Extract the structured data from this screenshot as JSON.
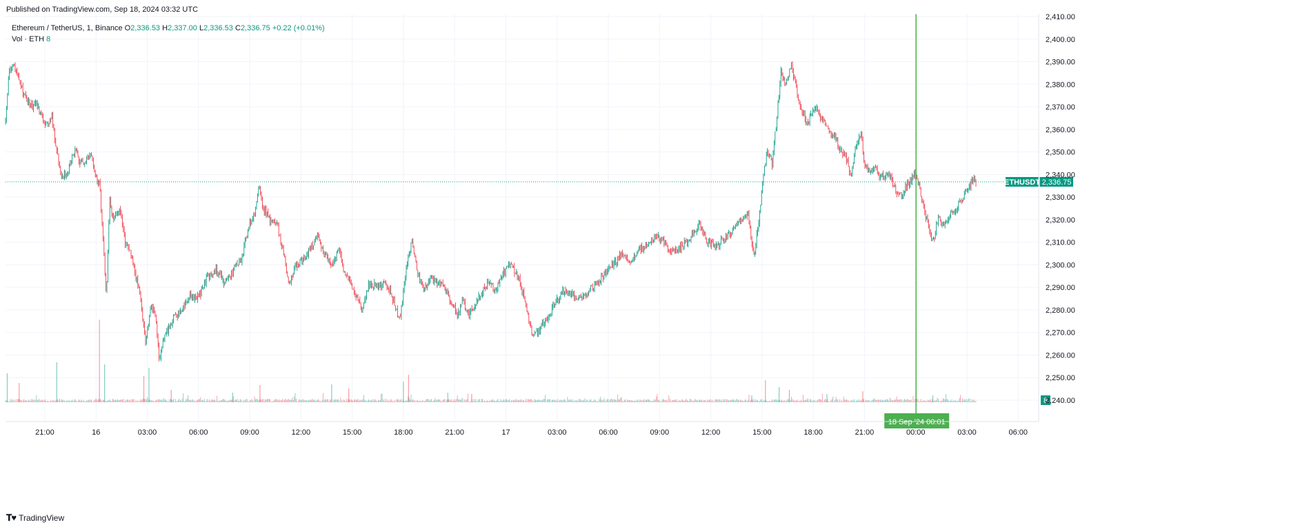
{
  "header": {
    "published": "Published on TradingView.com, Sep 18, 2024 03:32 UTC"
  },
  "legend": {
    "symbol": "Ethereum / TetherUS, 1, Binance",
    "o_label": "O",
    "o": "2,336.53",
    "h_label": "H",
    "h": "2,337.00",
    "l_label": "L",
    "l": "2,336.53",
    "c_label": "C",
    "c": "2,336.75",
    "change": "+0.22 (+0.01%)",
    "vol_label": "Vol · ETH",
    "vol": "8"
  },
  "price_label": {
    "ticker": "ETHUSDT",
    "price": "2,336.75"
  },
  "volume_badge": "8",
  "crosshair_label": "18 Sep '24   00:01",
  "footer": {
    "brand": "TradingView"
  },
  "colors": {
    "up": "#089981",
    "down": "#f23645",
    "crosshair": "#4caf50",
    "price_tag": "#089981"
  },
  "chart_data": {
    "type": "candlestick",
    "symbol": "ETHUSDT",
    "ylim": [
      2240,
      2410
    ],
    "y_ticks": [
      "2,410.00",
      "2,400.00",
      "2,390.00",
      "2,380.00",
      "2,370.00",
      "2,360.00",
      "2,350.00",
      "2,340.00",
      "2,330.00",
      "2,320.00",
      "2,310.00",
      "2,300.00",
      "2,290.00",
      "2,280.00",
      "2,270.00",
      "2,260.00",
      "2,250.00",
      "2,240.00"
    ],
    "y_tick_values": [
      2410,
      2400,
      2390,
      2380,
      2370,
      2360,
      2350,
      2340,
      2330,
      2320,
      2310,
      2300,
      2290,
      2280,
      2270,
      2260,
      2250,
      2240
    ],
    "x_labels": [
      "21:00",
      "16",
      "03:00",
      "06:00",
      "09:00",
      "12:00",
      "15:00",
      "18:00",
      "21:00",
      "17",
      "03:00",
      "06:00",
      "09:00",
      "12:00",
      "15:00",
      "18:00",
      "21:00",
      "00:00",
      "03:00",
      "06:00"
    ],
    "x_label_hours": [
      -3,
      0,
      3,
      6,
      9,
      12,
      15,
      18,
      21,
      24,
      27,
      30,
      33,
      36,
      39,
      42,
      45,
      48,
      51,
      54
    ],
    "x_range_hours": [
      -5.3,
      55.2
    ],
    "last_hour": 51.53,
    "crosshair_hour": 48.02,
    "last_price": 2336.75,
    "price_path": [
      [
        -5.3,
        2363
      ],
      [
        -5.1,
        2386
      ],
      [
        -4.8,
        2388
      ],
      [
        -4.3,
        2377
      ],
      [
        -3.8,
        2370
      ],
      [
        -3.5,
        2372
      ],
      [
        -3.2,
        2365
      ],
      [
        -2.8,
        2362
      ],
      [
        -2.6,
        2366
      ],
      [
        -2.4,
        2355
      ],
      [
        -2.0,
        2338
      ],
      [
        -1.6,
        2342
      ],
      [
        -1.2,
        2352
      ],
      [
        -0.9,
        2345
      ],
      [
        -0.3,
        2348
      ],
      [
        0.0,
        2339
      ],
      [
        0.2,
        2336
      ],
      [
        0.5,
        2300
      ],
      [
        0.6,
        2285
      ],
      [
        0.8,
        2330
      ],
      [
        1.0,
        2320
      ],
      [
        1.4,
        2325
      ],
      [
        1.7,
        2310
      ],
      [
        2.0,
        2305
      ],
      [
        2.3,
        2296
      ],
      [
        2.6,
        2285
      ],
      [
        2.9,
        2265
      ],
      [
        3.2,
        2282
      ],
      [
        3.5,
        2278
      ],
      [
        3.7,
        2256
      ],
      [
        4.0,
        2268
      ],
      [
        4.5,
        2276
      ],
      [
        5.0,
        2280
      ],
      [
        5.5,
        2287
      ],
      [
        6.0,
        2285
      ],
      [
        6.5,
        2294
      ],
      [
        7.0,
        2298
      ],
      [
        7.5,
        2292
      ],
      [
        8.0,
        2297
      ],
      [
        8.5,
        2302
      ],
      [
        9.0,
        2318
      ],
      [
        9.3,
        2322
      ],
      [
        9.5,
        2335
      ],
      [
        9.8,
        2325
      ],
      [
        10.2,
        2320
      ],
      [
        10.6,
        2318
      ],
      [
        11.0,
        2305
      ],
      [
        11.3,
        2290
      ],
      [
        11.7,
        2300
      ],
      [
        12.2,
        2303
      ],
      [
        12.6,
        2308
      ],
      [
        13.0,
        2312
      ],
      [
        13.4,
        2305
      ],
      [
        13.8,
        2300
      ],
      [
        14.2,
        2307
      ],
      [
        14.5,
        2298
      ],
      [
        14.9,
        2292
      ],
      [
        15.3,
        2285
      ],
      [
        15.6,
        2280
      ],
      [
        16.0,
        2292
      ],
      [
        16.5,
        2290
      ],
      [
        17.0,
        2292
      ],
      [
        17.4,
        2285
      ],
      [
        17.8,
        2275
      ],
      [
        18.2,
        2300
      ],
      [
        18.5,
        2310
      ],
      [
        18.8,
        2298
      ],
      [
        19.2,
        2288
      ],
      [
        19.6,
        2294
      ],
      [
        20.0,
        2292
      ],
      [
        20.4,
        2290
      ],
      [
        20.8,
        2283
      ],
      [
        21.2,
        2278
      ],
      [
        21.5,
        2285
      ],
      [
        21.8,
        2277
      ],
      [
        22.2,
        2283
      ],
      [
        22.6,
        2288
      ],
      [
        23.0,
        2292
      ],
      [
        23.4,
        2289
      ],
      [
        23.8,
        2296
      ],
      [
        24.3,
        2300
      ],
      [
        24.7,
        2295
      ],
      [
        25.1,
        2285
      ],
      [
        25.5,
        2270
      ],
      [
        25.9,
        2270
      ],
      [
        26.3,
        2275
      ],
      [
        26.8,
        2282
      ],
      [
        27.3,
        2288
      ],
      [
        27.8,
        2287
      ],
      [
        28.3,
        2285
      ],
      [
        28.8,
        2288
      ],
      [
        29.3,
        2292
      ],
      [
        29.8,
        2296
      ],
      [
        30.3,
        2300
      ],
      [
        30.8,
        2305
      ],
      [
        31.3,
        2302
      ],
      [
        31.8,
        2306
      ],
      [
        32.3,
        2310
      ],
      [
        32.8,
        2312
      ],
      [
        33.3,
        2310
      ],
      [
        33.8,
        2305
      ],
      [
        34.3,
        2308
      ],
      [
        34.8,
        2312
      ],
      [
        35.3,
        2318
      ],
      [
        35.8,
        2310
      ],
      [
        36.3,
        2308
      ],
      [
        36.8,
        2312
      ],
      [
        37.3,
        2315
      ],
      [
        37.8,
        2320
      ],
      [
        38.2,
        2322
      ],
      [
        38.5,
        2303
      ],
      [
        38.8,
        2318
      ],
      [
        39.1,
        2340
      ],
      [
        39.3,
        2350
      ],
      [
        39.6,
        2345
      ],
      [
        39.9,
        2368
      ],
      [
        40.1,
        2385
      ],
      [
        40.4,
        2380
      ],
      [
        40.7,
        2388
      ],
      [
        41.0,
        2378
      ],
      [
        41.3,
        2368
      ],
      [
        41.7,
        2363
      ],
      [
        42.1,
        2370
      ],
      [
        42.5,
        2365
      ],
      [
        42.9,
        2360
      ],
      [
        43.3,
        2357
      ],
      [
        43.6,
        2350
      ],
      [
        43.9,
        2348
      ],
      [
        44.2,
        2340
      ],
      [
        44.5,
        2352
      ],
      [
        44.8,
        2358
      ],
      [
        45.0,
        2344
      ],
      [
        45.3,
        2342
      ],
      [
        45.6,
        2343
      ],
      [
        46.0,
        2339
      ],
      [
        46.4,
        2340
      ],
      [
        46.8,
        2334
      ],
      [
        47.1,
        2330
      ],
      [
        47.5,
        2335
      ],
      [
        47.9,
        2340
      ],
      [
        48.2,
        2335
      ],
      [
        48.5,
        2325
      ],
      [
        48.7,
        2318
      ],
      [
        49.0,
        2310
      ],
      [
        49.3,
        2320
      ],
      [
        49.6,
        2318
      ],
      [
        50.0,
        2322
      ],
      [
        50.4,
        2326
      ],
      [
        50.8,
        2330
      ],
      [
        51.1,
        2334
      ],
      [
        51.3,
        2338
      ],
      [
        51.53,
        2336.75
      ]
    ],
    "volume_spikes": [
      [
        -5.2,
        42
      ],
      [
        -4.5,
        28
      ],
      [
        -2.3,
        58
      ],
      [
        0.2,
        120
      ],
      [
        0.5,
        55
      ],
      [
        2.8,
        38
      ],
      [
        3.1,
        50
      ],
      [
        4.4,
        18
      ],
      [
        8.0,
        14
      ],
      [
        9.6,
        25
      ],
      [
        13.8,
        26
      ],
      [
        14.8,
        20
      ],
      [
        18.0,
        30
      ],
      [
        18.3,
        40
      ],
      [
        20.6,
        14
      ],
      [
        22.0,
        12
      ],
      [
        38.4,
        10
      ],
      [
        39.2,
        32
      ],
      [
        40.0,
        22
      ],
      [
        40.6,
        18
      ],
      [
        42.8,
        12
      ],
      [
        44.9,
        16
      ],
      [
        49.0,
        10
      ]
    ]
  }
}
